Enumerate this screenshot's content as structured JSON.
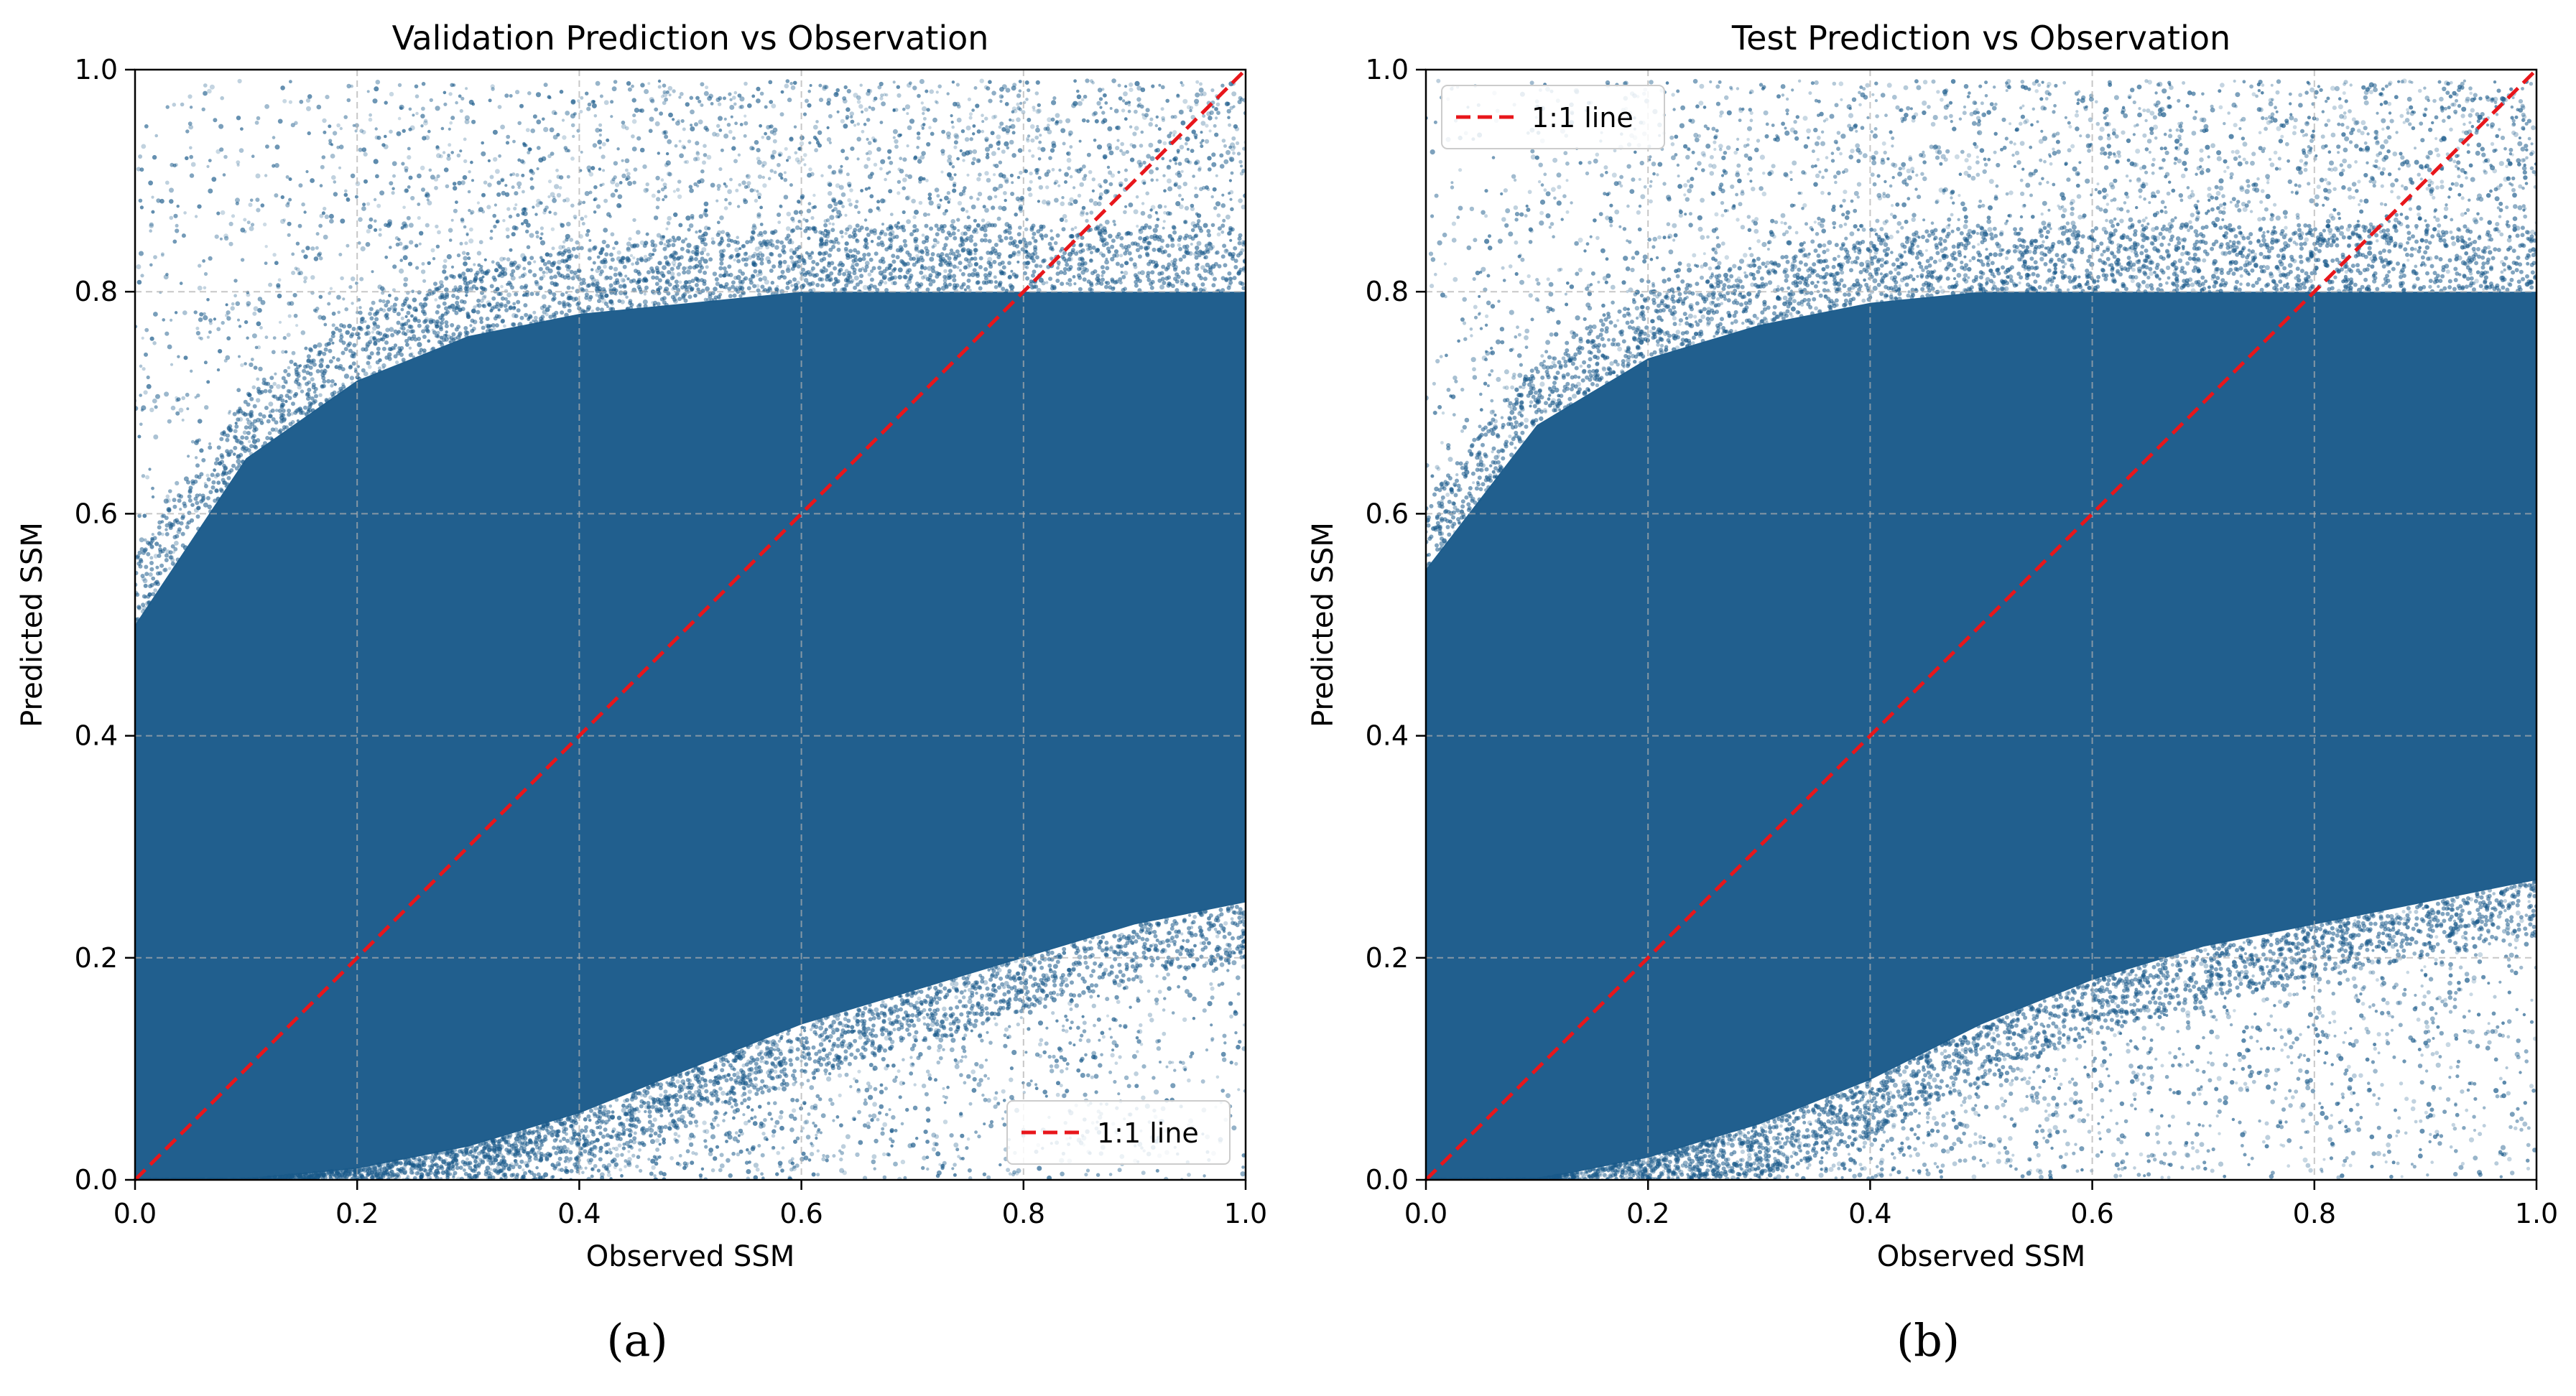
{
  "chart_data": [
    {
      "type": "scatter",
      "title": "Validation Prediction vs Observation",
      "xlabel": "Observed SSM",
      "ylabel": "Predicted SSM",
      "xlim": [
        0.0,
        1.0
      ],
      "ylim": [
        0.0,
        1.0
      ],
      "xticks": [
        "0.0",
        "0.2",
        "0.4",
        "0.6",
        "0.8",
        "1.0"
      ],
      "yticks": [
        "0.0",
        "0.2",
        "0.4",
        "0.6",
        "0.8",
        "1.0"
      ],
      "grid": true,
      "point_color": "#1a5a8a",
      "reference_line": {
        "label": "1:1 line",
        "x": [
          0,
          1
        ],
        "y": [
          0,
          1
        ],
        "color": "#e8161b",
        "style": "dashed"
      },
      "legend": {
        "entries": [
          "1:1 line"
        ],
        "position": "lower-right"
      },
      "density_band": {
        "x": [
          0.0,
          0.1,
          0.2,
          0.3,
          0.4,
          0.5,
          0.6,
          0.7,
          0.8,
          0.9,
          1.0
        ],
        "lower": [
          0.0,
          0.0,
          0.01,
          0.03,
          0.06,
          0.1,
          0.14,
          0.17,
          0.2,
          0.23,
          0.25
        ],
        "upper": [
          0.5,
          0.65,
          0.72,
          0.76,
          0.78,
          0.79,
          0.8,
          0.8,
          0.8,
          0.8,
          0.8
        ]
      },
      "caption": "(a)"
    },
    {
      "type": "scatter",
      "title": "Test Prediction vs Observation",
      "xlabel": "Observed SSM",
      "ylabel": "Predicted SSM",
      "xlim": [
        0.0,
        1.0
      ],
      "ylim": [
        0.0,
        1.0
      ],
      "xticks": [
        "0.0",
        "0.2",
        "0.4",
        "0.6",
        "0.8",
        "1.0"
      ],
      "yticks": [
        "0.0",
        "0.2",
        "0.4",
        "0.6",
        "0.8",
        "1.0"
      ],
      "grid": true,
      "point_color": "#1a5a8a",
      "reference_line": {
        "label": "1:1 line",
        "x": [
          0,
          1
        ],
        "y": [
          0,
          1
        ],
        "color": "#e8161b",
        "style": "dashed"
      },
      "legend": {
        "entries": [
          "1:1 line"
        ],
        "position": "upper-left"
      },
      "density_band": {
        "x": [
          0.0,
          0.1,
          0.2,
          0.3,
          0.4,
          0.5,
          0.6,
          0.7,
          0.8,
          0.9,
          1.0
        ],
        "lower": [
          0.0,
          0.0,
          0.02,
          0.05,
          0.09,
          0.14,
          0.18,
          0.21,
          0.23,
          0.25,
          0.27
        ],
        "upper": [
          0.55,
          0.68,
          0.74,
          0.77,
          0.79,
          0.8,
          0.8,
          0.8,
          0.8,
          0.8,
          0.8
        ]
      },
      "caption": "(b)"
    }
  ]
}
